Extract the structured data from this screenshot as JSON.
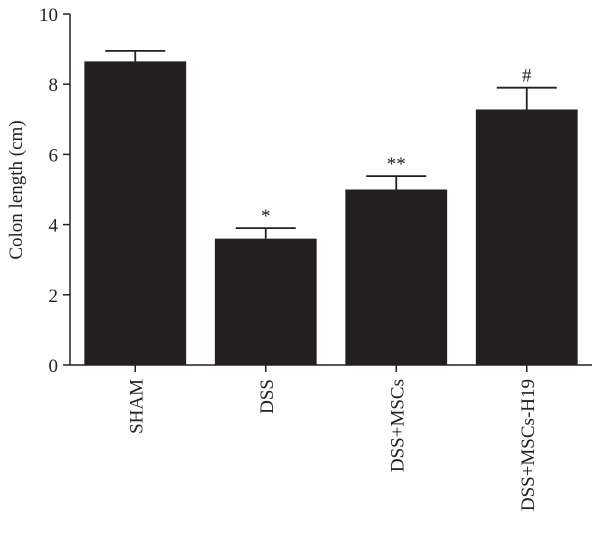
{
  "chart_data": {
    "type": "bar",
    "y_axis_label": "Colon length (cm)",
    "categories": [
      "SHAM",
      "DSS",
      "DSS+MSCs",
      "DSS+MSCs-H19"
    ],
    "values": [
      8.65,
      3.6,
      5.0,
      7.28
    ],
    "errors": [
      0.3,
      0.3,
      0.38,
      0.62
    ],
    "annotations": [
      {
        "category": "DSS",
        "text": "*"
      },
      {
        "category": "DSS+MSCs",
        "text": "**"
      },
      {
        "category": "DSS+MSCs-H19",
        "text": "#"
      }
    ],
    "color": "#231f20",
    "ylim": [
      0,
      10
    ],
    "yticks": [
      0,
      2,
      4,
      6,
      8,
      10
    ],
    "grid": false
  }
}
